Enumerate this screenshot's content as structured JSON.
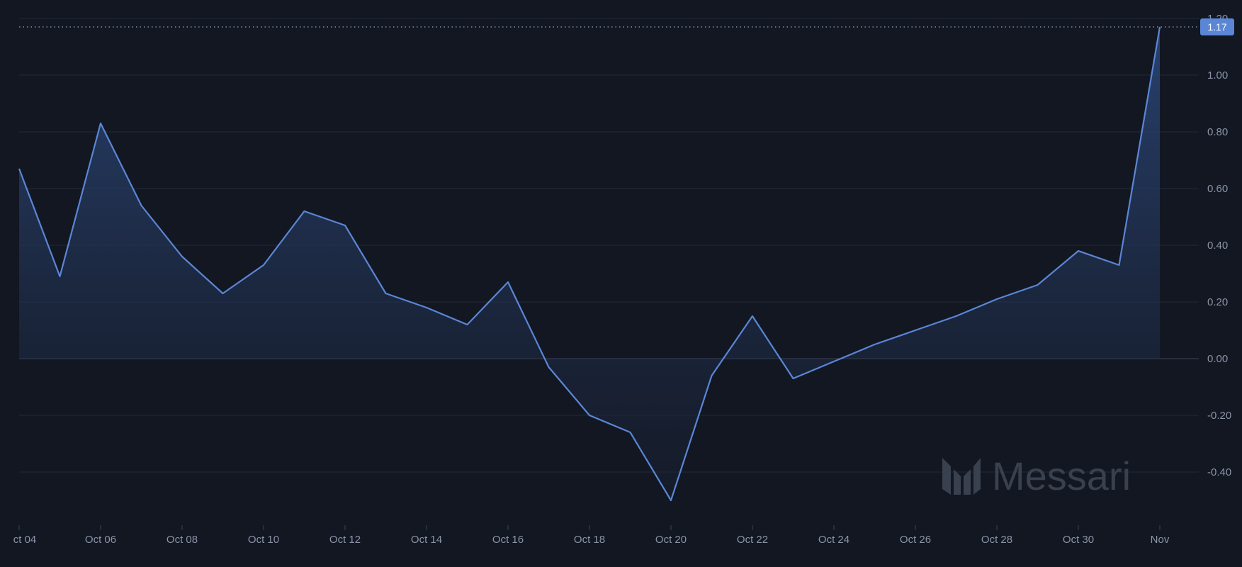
{
  "watermark": {
    "text": "Messari"
  },
  "last_value_label": "1.17",
  "colors": {
    "background": "#121722",
    "line": "#5b86d6",
    "fill_top": "#2d4a7e",
    "grid": "#222a38",
    "zero_line": "#2e3646",
    "tick_text": "#8b94a6",
    "badge": "#5b86d6"
  },
  "chart_data": {
    "type": "area",
    "x": [
      "Oct 04",
      "Oct 05",
      "Oct 06",
      "Oct 07",
      "Oct 08",
      "Oct 09",
      "Oct 10",
      "Oct 11",
      "Oct 12",
      "Oct 13",
      "Oct 14",
      "Oct 15",
      "Oct 16",
      "Oct 17",
      "Oct 18",
      "Oct 19",
      "Oct 20",
      "Oct 21",
      "Oct 22",
      "Oct 23",
      "Oct 24",
      "Oct 25",
      "Oct 26",
      "Oct 27",
      "Oct 28",
      "Oct 29",
      "Oct 30",
      "Oct 31",
      "Nov 01"
    ],
    "series": [
      {
        "values": [
          0.67,
          0.29,
          0.83,
          0.54,
          0.36,
          0.23,
          0.33,
          0.52,
          0.47,
          0.23,
          0.18,
          0.12,
          0.27,
          -0.03,
          -0.2,
          -0.26,
          -0.5,
          -0.06,
          0.15,
          -0.07,
          -0.01,
          0.05,
          0.1,
          0.15,
          0.21,
          0.26,
          0.38,
          0.33,
          1.17
        ]
      }
    ],
    "x_tick_labels": [
      "ct 04",
      "Oct 06",
      "Oct 08",
      "Oct 10",
      "Oct 12",
      "Oct 14",
      "Oct 16",
      "Oct 18",
      "Oct 20",
      "Oct 22",
      "Oct 24",
      "Oct 26",
      "Oct 28",
      "Oct 30",
      "Nov"
    ],
    "y_tick_labels": [
      "1.20",
      "1.00",
      "0.80",
      "0.60",
      "0.40",
      "0.20",
      "0.00",
      "-0.20",
      "-0.40"
    ],
    "y_ticks": [
      1.2,
      1.0,
      0.8,
      0.6,
      0.4,
      0.2,
      0.0,
      -0.2,
      -0.4
    ],
    "ylim": [
      -0.5,
      1.2
    ],
    "grid": true,
    "legend": "none"
  }
}
